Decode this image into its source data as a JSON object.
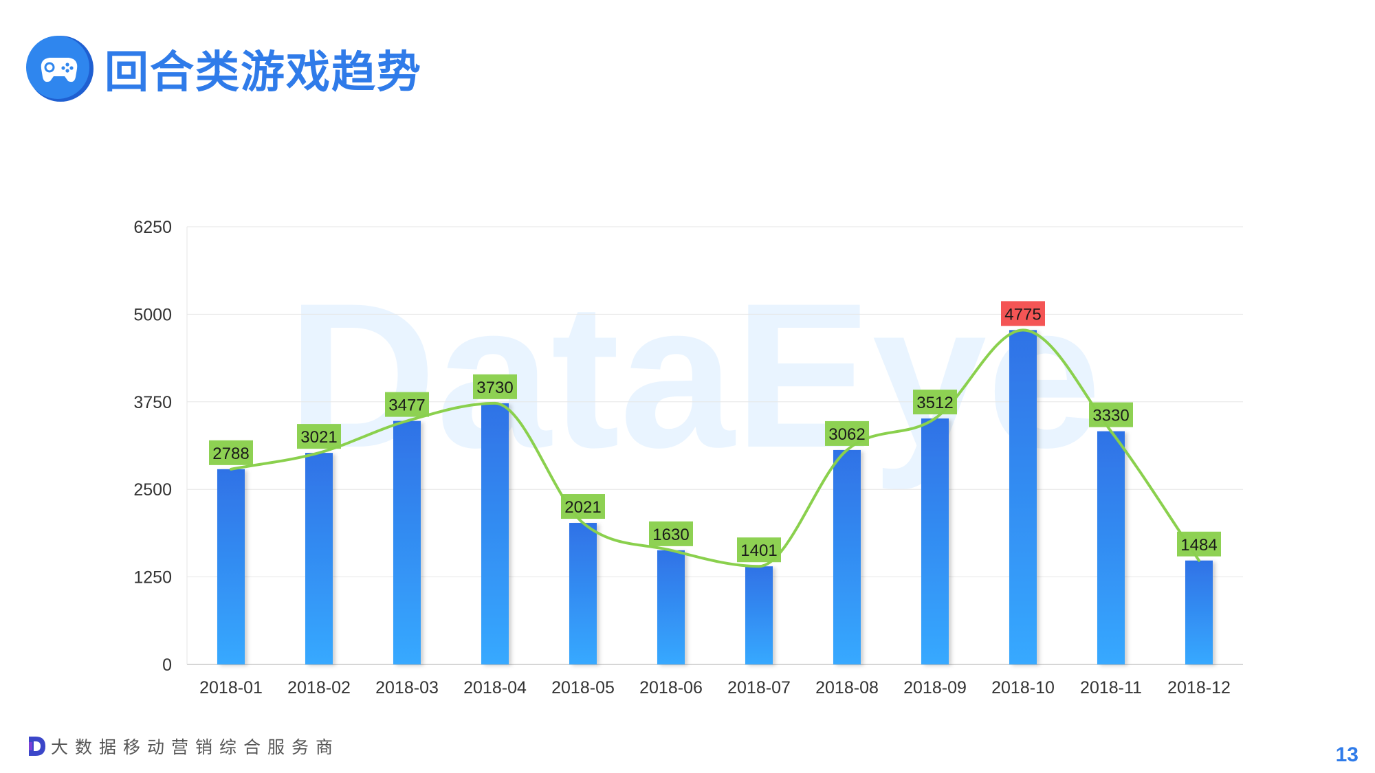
{
  "page": {
    "title": "回合类游戏趋势",
    "slogan": "大数据移动营销综合服务商",
    "page_number": "13",
    "watermark": "DataEye"
  },
  "icons": {
    "header": "gamepad-icon",
    "footer": "dataeye-d-logo-icon"
  },
  "colors": {
    "title": "#2f7be9",
    "bar_top": "#2f72e6",
    "bar_bottom": "#37a9ff",
    "line": "#8ad04d",
    "label_bg": "#8ad04d",
    "peak_label_bg": "#f44f4f",
    "watermark": "#e6f3ff"
  },
  "chart_data": {
    "type": "bar",
    "categories": [
      "2018-01",
      "2018-02",
      "2018-03",
      "2018-04",
      "2018-05",
      "2018-06",
      "2018-07",
      "2018-08",
      "2018-09",
      "2018-10",
      "2018-11",
      "2018-12"
    ],
    "series": [
      {
        "values": [
          2788,
          3021,
          3477,
          3730,
          2021,
          1630,
          1401,
          3062,
          3512,
          4775,
          3330,
          1484
        ]
      }
    ],
    "overlay": "smooth-line",
    "highlight_max": true,
    "y_ticks": [
      0,
      1250,
      2500,
      3750,
      5000,
      6250
    ],
    "ylim": [
      0,
      6250
    ],
    "grid": true,
    "legend": "none"
  }
}
